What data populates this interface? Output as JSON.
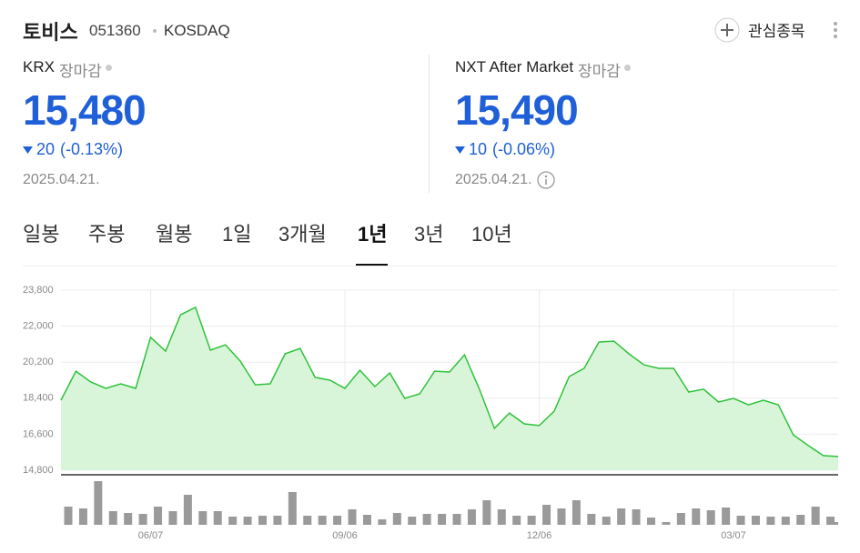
{
  "header": {
    "name": "토비스",
    "code": "051360",
    "market": "KOSDAQ",
    "watchlist": "관심종목"
  },
  "quotes": [
    {
      "venue": "KRX",
      "status": "장마감",
      "price": "15,480",
      "change": "20",
      "change_pct": "(-0.13%)",
      "date": "2025.04.21."
    },
    {
      "venue": "NXT After Market",
      "status": "장마감",
      "price": "15,490",
      "change": "10",
      "change_pct": "(-0.06%)",
      "date": "2025.04.21."
    }
  ],
  "tabs": {
    "items": [
      "일봉",
      "주봉",
      "월봉",
      "1일",
      "3개월",
      "1년",
      "3년",
      "10년"
    ],
    "selected": 5
  },
  "chart_data": {
    "type": "line",
    "categories": [
      null,
      null,
      null,
      null,
      null,
      null,
      "06/07",
      null,
      null,
      null,
      null,
      null,
      null,
      null,
      null,
      null,
      null,
      null,
      null,
      "09/06",
      null,
      null,
      null,
      null,
      null,
      null,
      null,
      null,
      null,
      null,
      null,
      null,
      "12/06",
      null,
      null,
      null,
      null,
      null,
      null,
      null,
      null,
      null,
      null,
      null,
      null,
      "03/07",
      null,
      null,
      null,
      null,
      null,
      null,
      null
    ],
    "values": [
      18300,
      19750,
      19210,
      18890,
      19120,
      18890,
      21440,
      20750,
      22570,
      22940,
      20800,
      21070,
      20250,
      19070,
      19120,
      20620,
      20890,
      19440,
      19300,
      18890,
      19800,
      18980,
      19660,
      18390,
      18620,
      19750,
      19710,
      20570,
      18850,
      16890,
      17660,
      17120,
      17030,
      17750,
      19480,
      19890,
      21210,
      21250,
      20620,
      20070,
      19890,
      19890,
      18710,
      18850,
      18210,
      18390,
      18070,
      18300,
      18070,
      16570,
      16030,
      15530,
      15480
    ],
    "color": "#2ec23a",
    "fill": "#d9f5d9",
    "volume": [
      20,
      18,
      48,
      15,
      13,
      12,
      20,
      15,
      33,
      15,
      15,
      9,
      9,
      10,
      10,
      36,
      10,
      10,
      10,
      17,
      11,
      6,
      13,
      9,
      12,
      12,
      12,
      17,
      27,
      17,
      10,
      10,
      22,
      18,
      27,
      12,
      9,
      18,
      17,
      8,
      3,
      13,
      18,
      16,
      19,
      10,
      10,
      9,
      9,
      11,
      20,
      9,
      3
    ],
    "volume_color": "#9a9a9a",
    "ylim": [
      14800,
      23800
    ],
    "yticks": [
      {
        "value": 14800,
        "label": "14,800"
      },
      {
        "value": 16600,
        "label": "16,600"
      },
      {
        "value": 18400,
        "label": "18,400"
      },
      {
        "value": 20200,
        "label": "20,200"
      },
      {
        "value": 22000,
        "label": "22,000"
      },
      {
        "value": 23800,
        "label": "23,800"
      }
    ],
    "grid": true
  }
}
